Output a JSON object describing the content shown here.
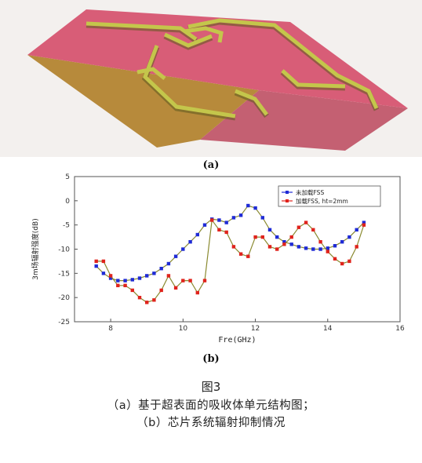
{
  "figure_a": {
    "label": "(a)",
    "colors": {
      "top": "#d85d77",
      "front": "#b78a3b",
      "side": "#c46072",
      "trace": "#c4c64b",
      "trace_dark": "#5e5a1e"
    }
  },
  "figure_b": {
    "label": "(b)"
  },
  "chart_data": {
    "type": "line",
    "title": "",
    "xlabel": "Fre(GHz)",
    "ylabel": "3m场辐射强度(dB)",
    "xlim": [
      7,
      16
    ],
    "ylim": [
      -25,
      5
    ],
    "xticks": [
      "8",
      "10",
      "12",
      "14",
      "16"
    ],
    "yticks": [
      "5",
      "0",
      "-5",
      "-10",
      "-15",
      "-20",
      "-25"
    ],
    "grid": false,
    "legend_position": "top-right",
    "series": [
      {
        "name": "未加载FSS",
        "color": "#1f2bd6",
        "x": [
          7.6,
          7.8,
          8.0,
          8.2,
          8.4,
          8.6,
          8.8,
          9.0,
          9.2,
          9.4,
          9.6,
          9.8,
          10.0,
          10.2,
          10.4,
          10.6,
          10.8,
          11.0,
          11.2,
          11.4,
          11.6,
          11.8,
          12.0,
          12.2,
          12.4,
          12.6,
          12.8,
          13.0,
          13.2,
          13.4,
          13.6,
          13.8,
          14.0,
          14.2,
          14.4,
          14.6,
          14.8,
          15.0
        ],
        "y": [
          -13.5,
          -15,
          -16,
          -16.5,
          -16.5,
          -16.3,
          -16,
          -15.5,
          -15,
          -14,
          -13,
          -11.5,
          -10,
          -8.5,
          -7,
          -5,
          -3.8,
          -4,
          -4.5,
          -3.5,
          -3,
          -1,
          -1.5,
          -3.5,
          -6,
          -7.5,
          -8.5,
          -9,
          -9.5,
          -9.8,
          -10,
          -10,
          -9.8,
          -9.3,
          -8.5,
          -7.5,
          -6,
          -4.5
        ]
      },
      {
        "name": "加载FSS, ht=2mm",
        "color": "#e0231c",
        "x": [
          7.6,
          7.8,
          8.0,
          8.2,
          8.4,
          8.6,
          8.8,
          9.0,
          9.2,
          9.4,
          9.6,
          9.8,
          10.0,
          10.2,
          10.4,
          10.6,
          10.8,
          11.0,
          11.2,
          11.4,
          11.6,
          11.8,
          12.0,
          12.2,
          12.4,
          12.6,
          12.8,
          13.0,
          13.2,
          13.4,
          13.6,
          13.8,
          14.0,
          14.2,
          14.4,
          14.6,
          14.8,
          15.0
        ],
        "y": [
          -12.5,
          -12.5,
          -15.5,
          -17.5,
          -17.5,
          -18.5,
          -20,
          -21,
          -20.5,
          -18.5,
          -15.5,
          -18,
          -16.5,
          -16.5,
          -19,
          -16.5,
          -4,
          -6,
          -6.5,
          -9.5,
          -11,
          -11.5,
          -7.5,
          -7.5,
          -9.5,
          -10,
          -9,
          -7.5,
          -5.5,
          -4.5,
          -6,
          -8.5,
          -10.5,
          -12,
          -13,
          -12.5,
          -9.5,
          -5
        ]
      }
    ]
  },
  "caption": {
    "number": "图3",
    "line1": "（a）基于超表面的吸收体单元结构图；",
    "line2": "（b）芯片系统辐射抑制情况"
  }
}
